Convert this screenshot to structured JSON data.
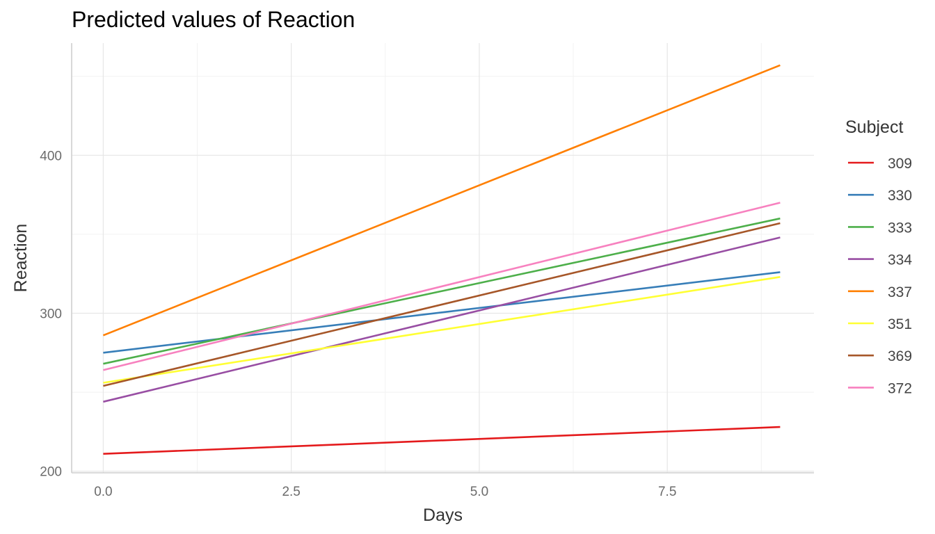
{
  "chart_data": {
    "type": "line",
    "title": "Predicted values of Reaction",
    "xlabel": "Days",
    "ylabel": "Reaction",
    "xlim": [
      -0.42,
      9.45
    ],
    "ylim": [
      199,
      471
    ],
    "x_ticks": [
      0.0,
      2.5,
      5.0,
      7.5
    ],
    "x_tick_labels": [
      "0.0",
      "2.5",
      "5.0",
      "7.5"
    ],
    "y_ticks": [
      200,
      300,
      400
    ],
    "y_tick_labels": [
      "200",
      "300",
      "400"
    ],
    "grid": true,
    "legend_title": "Subject",
    "legend_position": "right",
    "x": [
      0,
      9
    ],
    "series": [
      {
        "name": "309",
        "color": "#e41a1c",
        "values": [
          211,
          228
        ]
      },
      {
        "name": "330",
        "color": "#377eb8",
        "values": [
          275,
          326
        ]
      },
      {
        "name": "333",
        "color": "#4daf4a",
        "values": [
          268,
          360
        ]
      },
      {
        "name": "334",
        "color": "#984ea3",
        "values": [
          244,
          348
        ]
      },
      {
        "name": "337",
        "color": "#ff7f00",
        "values": [
          286,
          457
        ]
      },
      {
        "name": "351",
        "color": "#ffff33",
        "values": [
          256,
          323
        ]
      },
      {
        "name": "369",
        "color": "#a65628",
        "values": [
          254,
          357
        ]
      },
      {
        "name": "372",
        "color": "#f781bf",
        "values": [
          264,
          370
        ]
      }
    ]
  }
}
